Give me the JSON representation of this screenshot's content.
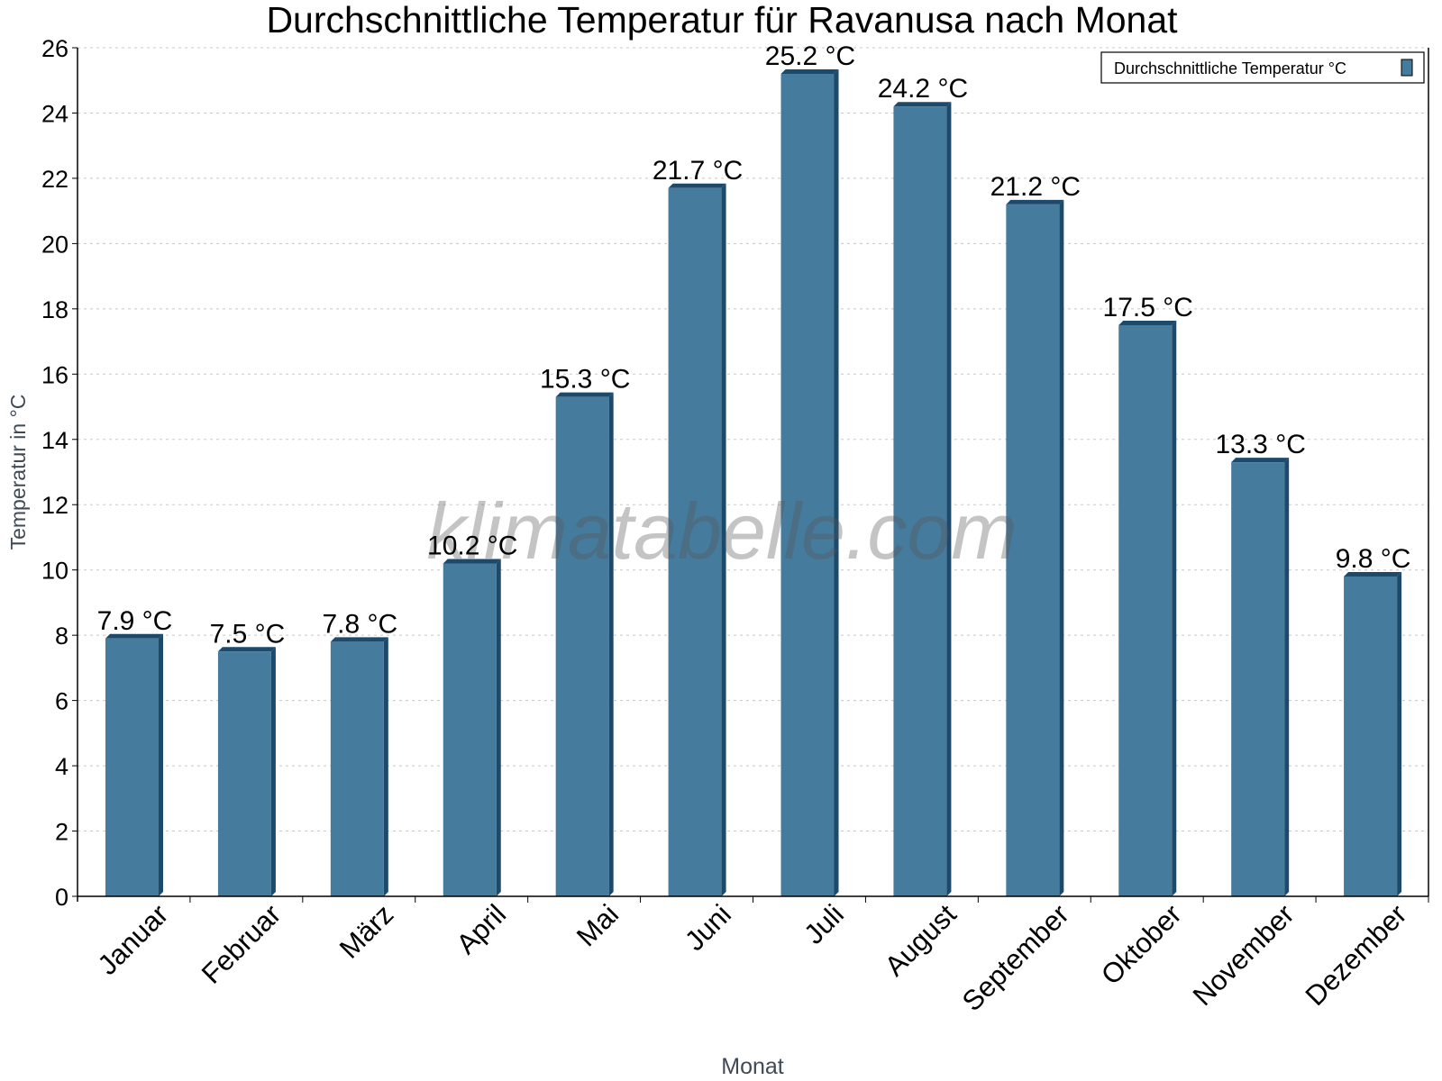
{
  "chart_data": {
    "type": "bar",
    "title": "Durchschnittliche Temperatur für Ravanusa nach Monat",
    "xlabel": "Monat",
    "ylabel": "Temperatur in °C",
    "ylim": [
      0,
      26
    ],
    "yticks": [
      0,
      2,
      4,
      6,
      8,
      10,
      12,
      14,
      16,
      18,
      20,
      22,
      24,
      26
    ],
    "grid": true,
    "legend_position": "top-right",
    "categories": [
      "Januar",
      "Februar",
      "März",
      "April",
      "Mai",
      "Juni",
      "Juli",
      "August",
      "September",
      "Oktober",
      "November",
      "Dezember"
    ],
    "series": [
      {
        "name": "Durchschnittliche Temperatur °C",
        "values": [
          7.9,
          7.5,
          7.8,
          10.2,
          15.3,
          21.7,
          25.2,
          24.2,
          21.2,
          17.5,
          13.3,
          9.8
        ],
        "labels": [
          "7.9 °C",
          "7.5 °C",
          "7.8 °C",
          "10.2 °C",
          "15.3 °C",
          "21.7 °C",
          "25.2 °C",
          "24.2 °C",
          "21.2 °C",
          "17.5 °C",
          "13.3 °C",
          "9.8 °C"
        ],
        "color": "#457b9d",
        "shade_color": "#1d4a6b"
      }
    ],
    "watermark": "klimatabelle.com"
  }
}
